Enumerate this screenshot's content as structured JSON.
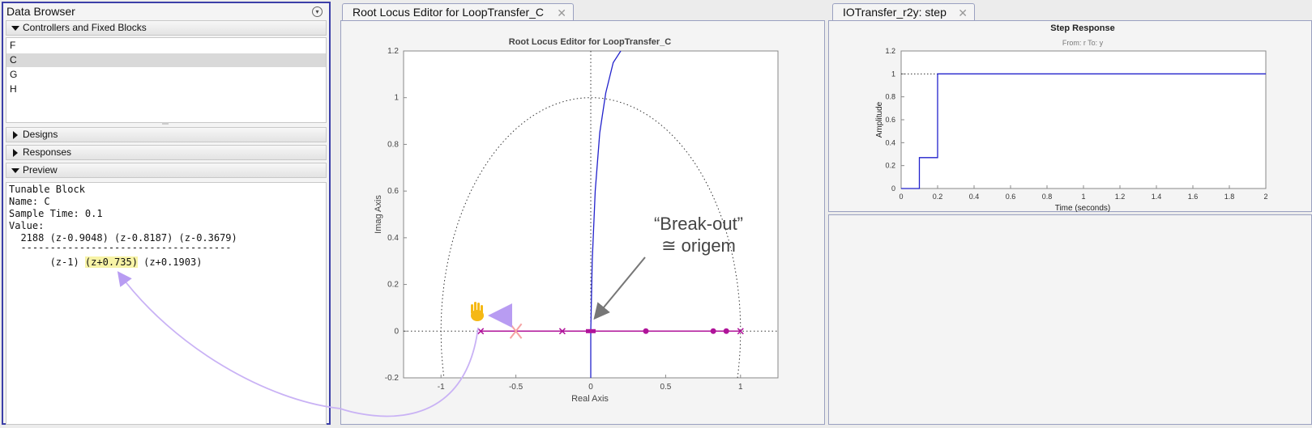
{
  "data_browser": {
    "title": "Data Browser",
    "sections": {
      "controllers": "Controllers and Fixed Blocks",
      "designs": "Designs",
      "responses": "Responses",
      "preview": "Preview"
    },
    "blocks": [
      "F",
      "C",
      "G",
      "H"
    ],
    "selected_block": "C",
    "preview_lines": {
      "l1": "Tunable Block",
      "l2": "Name: C",
      "l3": "Sample Time: 0.1",
      "l4": "Value:",
      "l5": "  2188 (z-0.9048) (z-0.8187) (z-0.3679)",
      "l6": "  ------------------------------------",
      "den_a": "       (z-1) ",
      "den_hl": "(z+0.735)",
      "den_b": " (z+0.1903)"
    }
  },
  "root_locus": {
    "tab_label": "Root Locus Editor for LoopTransfer_C",
    "chart_title": "Root Locus Editor for LoopTransfer_C",
    "xlabel": "Real Axis",
    "ylabel": "Imag Axis",
    "xticks": [
      "-1",
      "-0.5",
      "0",
      "0.5",
      "1"
    ],
    "yticks": [
      "1.2",
      "1",
      "0.8",
      "0.6",
      "0.4",
      "0.2",
      "0",
      "-0.2"
    ],
    "annotation_line1": "“Break-out”",
    "annotation_line2": "≅ origem"
  },
  "step": {
    "tab_label": "IOTransfer_r2y: step",
    "title": "Step Response",
    "subtitle": "From: r  To: y",
    "xlabel": "Time (seconds)",
    "ylabel": "Amplitude",
    "xticks": [
      "0",
      "0.2",
      "0.4",
      "0.6",
      "0.8",
      "1",
      "1.2",
      "1.4",
      "1.6",
      "1.8",
      "2"
    ],
    "yticks": [
      "1.2",
      "1",
      "0.8",
      "0.6",
      "0.4",
      "0.2",
      "0"
    ]
  },
  "colors": {
    "locus": "#2222cc",
    "poles_zeros": "#b0149a",
    "highlight": "#f7f3a6",
    "annotation_arrow": "#b89cf2",
    "accent_blue": "#3c3fa8"
  },
  "chart_data": [
    {
      "type": "scatter",
      "title": "Root Locus Editor for LoopTransfer_C",
      "xlabel": "Real Axis",
      "ylabel": "Imag Axis",
      "xlim": [
        -1.25,
        1.25
      ],
      "ylim": [
        -0.2,
        1.2
      ],
      "grid": false,
      "unit_circle": true,
      "series": [
        {
          "kind": "pole",
          "x": [
            -0.735,
            -0.19,
            1.0
          ],
          "y": [
            0,
            0,
            0
          ]
        },
        {
          "kind": "zero",
          "x": [
            0.368,
            0.818,
            0.905
          ],
          "y": [
            0,
            0,
            0
          ]
        },
        {
          "kind": "ghost-pole",
          "x": [
            -0.5
          ],
          "y": [
            0
          ]
        }
      ],
      "locus_branch": {
        "x": [
          0.0,
          0.0,
          0.01,
          0.03,
          0.06,
          0.1,
          0.15,
          0.2
        ],
        "y": [
          -0.2,
          0.0,
          0.3,
          0.6,
          0.85,
          1.02,
          1.15,
          1.22
        ]
      }
    },
    {
      "type": "line",
      "title": "Step Response",
      "xlabel": "Time (seconds)",
      "ylabel": "Amplitude",
      "xlim": [
        0,
        2
      ],
      "ylim": [
        0,
        1.2
      ],
      "x": [
        0,
        0.1,
        0.1,
        0.2,
        0.2,
        2.0
      ],
      "y": [
        0,
        0,
        0.27,
        0.27,
        1.0,
        1.0
      ],
      "reference_line": 1
    }
  ]
}
